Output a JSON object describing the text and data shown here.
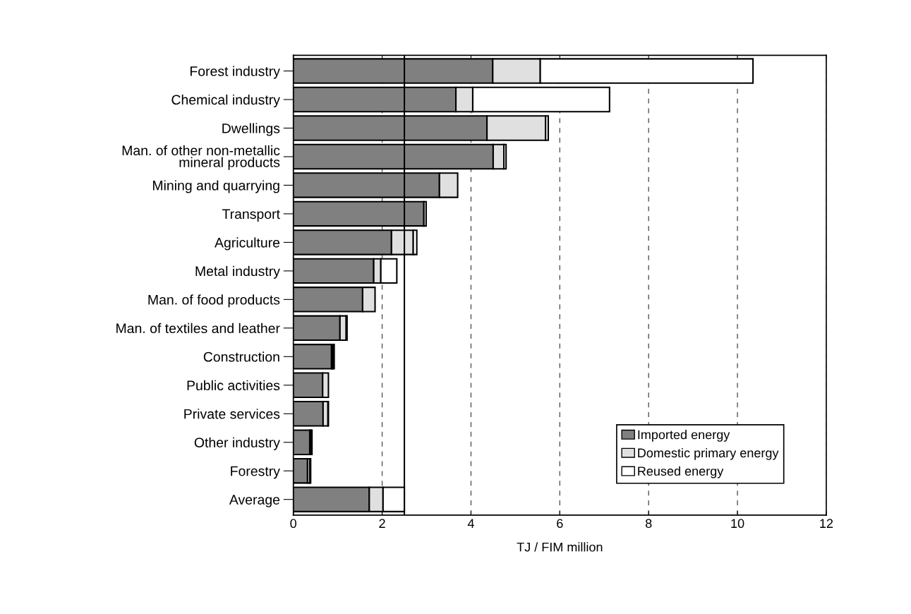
{
  "chart_data": {
    "type": "bar",
    "orientation": "horizontal",
    "stacked": true,
    "categories": [
      "Forest industry",
      "Chemical industry",
      "Dwellings",
      "Man. of other non-metallic\nmineral products",
      "Mining and quarrying",
      "Transport",
      "Agriculture",
      "Metal industry",
      "Man. of food products",
      "Man. of textiles and leather",
      "Construction",
      "Public activities",
      "Private services",
      "Other industry",
      "Forestry",
      "Average"
    ],
    "series": [
      {
        "name": "Imported energy",
        "color": "#808080",
        "values": [
          4.49,
          3.66,
          4.36,
          4.5,
          3.29,
          2.94,
          2.21,
          1.81,
          1.56,
          1.05,
          0.86,
          0.66,
          0.67,
          0.37,
          0.32,
          1.71
        ]
      },
      {
        "name": "Domestic primary energy",
        "color": "#e0e0e0",
        "values": [
          1.07,
          0.38,
          1.32,
          0.24,
          0.41,
          null,
          0.49,
          0.16,
          0.28,
          0.14,
          0.03,
          0.13,
          0.11,
          0.03,
          0.05,
          0.31
        ]
      },
      {
        "name": "Reused energy",
        "color": "#ffffff",
        "values": [
          4.79,
          3.08,
          0.06,
          0.05,
          0,
          0.05,
          0.08,
          0.36,
          0,
          0.02,
          0.03,
          0,
          0.01,
          0.02,
          0.02,
          0.48
        ]
      }
    ],
    "xlabel": "TJ / FIM million",
    "xlim": [
      0,
      12
    ],
    "xticks": [
      0,
      2,
      4,
      6,
      8,
      10,
      12
    ],
    "grid": "x",
    "legend": "bottom right",
    "ref_lines": [
      {
        "axis": "x",
        "value": 2.5,
        "color": "#000000"
      }
    ]
  }
}
